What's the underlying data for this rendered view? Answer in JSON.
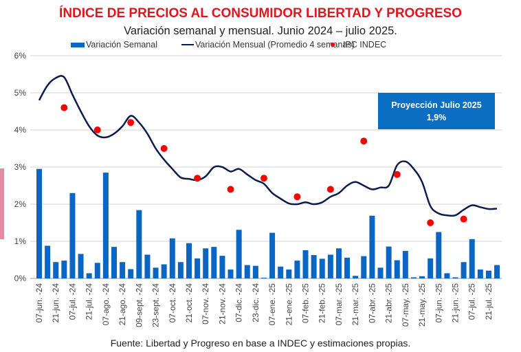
{
  "chart_data": {
    "type": "bar+line+scatter",
    "title": "ÍNDICE DE PRECIOS AL CONSUMIDOR LIBERTAD Y PROGRESO",
    "subtitle": "Variación semanal y mensual. Junio 2024 – julio 2025.",
    "source": "Fuente: Libertad y Progreso en base a INDEC y estimaciones propias.",
    "ylim": [
      0,
      6
    ],
    "yticks": [
      "0%",
      "1%",
      "2%",
      "3%",
      "4%",
      "5%",
      "6%"
    ],
    "grid": true,
    "legend_position": "top",
    "xtick_labels": [
      "07-jun. -24",
      "21-jun. -24",
      "07-jul. -24",
      "21-jul. -24",
      "07-ago. -24",
      "21-ago. -24",
      "09-sept. -24",
      "23-sept. -24",
      "07-oct. -24",
      "21-oct. -24",
      "07-nov. -24",
      "21-nov. -24",
      "07-dic. -24",
      "23-dic. -24",
      "07-ene. -25",
      "21-ene. -25",
      "07-feb. -25",
      "21-feb. -25",
      "07-mar. -25",
      "21-mar. -25",
      "07-abr. -25",
      "21-abr. -25",
      "07-may. -25",
      "21-may. -25",
      "07-jun. -25",
      "21-jun. -25",
      "07-jul. -25",
      "21-jul. -25"
    ],
    "series": [
      {
        "name": "Variación Semanal",
        "type": "bar",
        "color": "#0a66c2",
        "values": [
          2.95,
          0.88,
          0.44,
          0.48,
          2.3,
          0.66,
          0.14,
          0.42,
          2.85,
          0.85,
          0.44,
          0.25,
          1.84,
          0.64,
          0.29,
          0.38,
          1.08,
          0.44,
          0.95,
          0.54,
          0.81,
          0.85,
          0.61,
          0.24,
          1.31,
          0.36,
          0.34,
          0.02,
          1.23,
          0.32,
          0.24,
          0.48,
          0.76,
          0.63,
          0.53,
          0.64,
          0.81,
          0.56,
          0.07,
          0.6,
          1.69,
          0.29,
          0.86,
          0.49,
          0.74,
          0.03,
          0.06,
          0.54,
          1.25,
          0.14,
          0.03,
          0.44,
          1.06,
          0.24,
          0.21,
          0.36
        ]
      },
      {
        "name": "Variación Mensual (Promedio 4 semanas)",
        "type": "line",
        "color": "#0d1a4e",
        "values": [
          4.8,
          5.2,
          5.4,
          5.42,
          4.95,
          4.5,
          4.1,
          3.85,
          3.8,
          3.9,
          4.1,
          4.38,
          4.2,
          3.9,
          3.5,
          3.2,
          2.95,
          2.72,
          2.68,
          2.65,
          2.75,
          3.0,
          3.0,
          2.88,
          2.95,
          2.8,
          2.65,
          2.55,
          2.3,
          2.15,
          2.02,
          2.0,
          2.05,
          2.0,
          2.05,
          2.2,
          2.3,
          2.5,
          2.6,
          2.5,
          2.4,
          2.45,
          2.5,
          3.05,
          3.15,
          2.95,
          2.6,
          1.95,
          1.75,
          1.7,
          1.7,
          1.85,
          1.97,
          1.92,
          1.87,
          1.88
        ]
      },
      {
        "name": "IPC INDEC",
        "type": "scatter",
        "color": "#ff0000",
        "points": [
          {
            "week": 3,
            "value": 4.6
          },
          {
            "week": 7,
            "value": 4.0
          },
          {
            "week": 11,
            "value": 4.2
          },
          {
            "week": 15,
            "value": 3.5
          },
          {
            "week": 19,
            "value": 2.7
          },
          {
            "week": 23,
            "value": 2.4
          },
          {
            "week": 27,
            "value": 2.7
          },
          {
            "week": 31,
            "value": 2.2
          },
          {
            "week": 35,
            "value": 2.4
          },
          {
            "week": 39,
            "value": 3.7
          },
          {
            "week": 43,
            "value": 2.8
          },
          {
            "week": 47,
            "value": 1.5
          },
          {
            "week": 51,
            "value": 1.6
          }
        ]
      }
    ],
    "annotation": {
      "line1": "Proyección Julio 2025",
      "line2": "1,9%"
    }
  }
}
